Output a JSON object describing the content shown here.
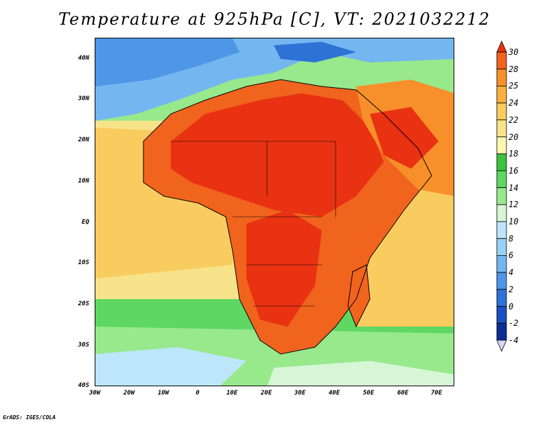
{
  "title": "Temperature at 925hPa [C], VT: 2021032212",
  "credit": "GrADS: IGES/COLA",
  "map": {
    "region": "Africa and surrounding oceans",
    "lat_labels": [
      "40N",
      "30N",
      "20N",
      "10N",
      "EQ",
      "10S",
      "20S",
      "30S",
      "40S"
    ],
    "lon_labels": [
      "30W",
      "20W",
      "10W",
      "0",
      "10E",
      "20E",
      "30E",
      "40E",
      "50E",
      "60E",
      "70E"
    ]
  },
  "colorbar": {
    "labels": [
      "30",
      "28",
      "25",
      "24",
      "22",
      "20",
      "18",
      "16",
      "14",
      "12",
      "10",
      "8",
      "6",
      "4",
      "2",
      "0",
      "-2",
      "-4"
    ],
    "colors": [
      "#e83212",
      "#f0641e",
      "#f7902a",
      "#fab040",
      "#f9cc60",
      "#f7e38a",
      "#fff7b0",
      "#3ec040",
      "#5ed862",
      "#98e88c",
      "#d6f6d6",
      "#bde6fa",
      "#97d1f6",
      "#74b6f0",
      "#4f96e6",
      "#2e72d6",
      "#1a4fbf",
      "#0c2e96",
      "#061d6e"
    ]
  }
}
